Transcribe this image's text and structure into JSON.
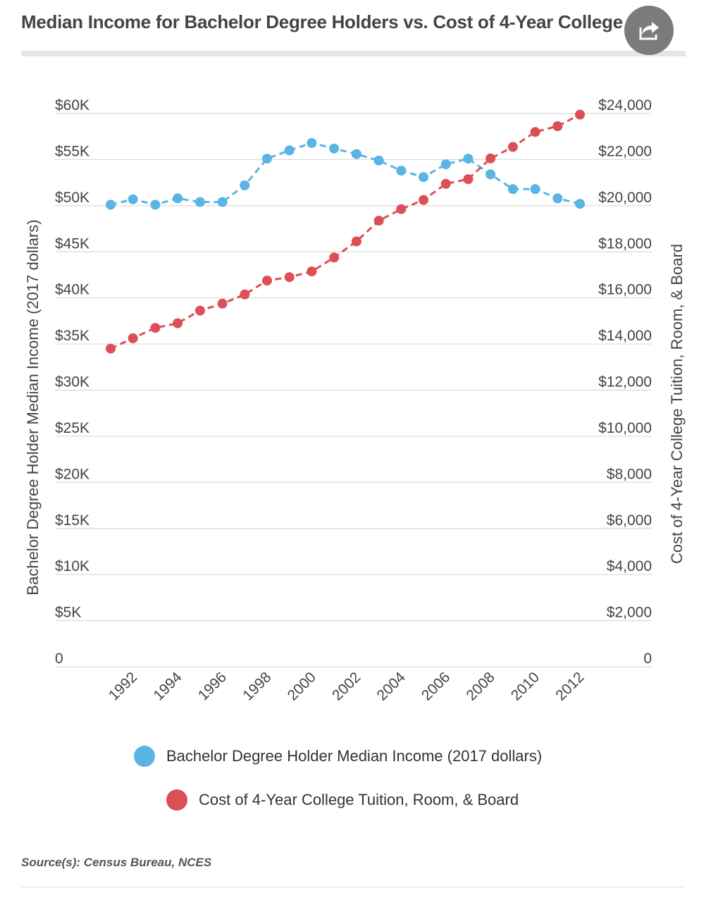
{
  "header": {
    "title": "Median Income for Bachelor Degree Holders vs. Cost of 4-Year College"
  },
  "share": {
    "icon": "share-icon"
  },
  "colors": {
    "income": "#5ab4e4",
    "cost": "#dd4f56",
    "grid": "#d9d9d9",
    "text": "#444444"
  },
  "chart_data": {
    "type": "line",
    "title": "Median Income for Bachelor Degree Holders vs. Cost of 4-Year College",
    "x": [
      1991,
      1992,
      1993,
      1994,
      1995,
      1996,
      1997,
      1998,
      1999,
      2000,
      2001,
      2002,
      2003,
      2004,
      2005,
      2006,
      2007,
      2008,
      2009,
      2010,
      2011,
      2012
    ],
    "x_ticks": [
      "1992",
      "1994",
      "1996",
      "1998",
      "2000",
      "2002",
      "2004",
      "2006",
      "2008",
      "2010",
      "2012"
    ],
    "xlim": [
      1991,
      2012
    ],
    "series": [
      {
        "name": "Bachelor Degree Holder Median Income (2017 dollars)",
        "axis": "left",
        "values": [
          50100,
          50700,
          50100,
          50800,
          50400,
          50400,
          52200,
          55100,
          56000,
          56800,
          56200,
          55600,
          54900,
          53800,
          53100,
          54500,
          55100,
          53400,
          51800,
          51800,
          50800,
          50200
        ]
      },
      {
        "name": "Cost of 4-Year College Tuition, Room, & Board",
        "axis": "right",
        "values": [
          13800,
          14250,
          14700,
          14900,
          15450,
          15750,
          16150,
          16750,
          16900,
          17150,
          17750,
          18450,
          19350,
          19850,
          20250,
          20950,
          21150,
          22050,
          22550,
          23200,
          23450,
          23950
        ]
      }
    ],
    "y_left": {
      "label": "Bachelor Degree Holder Median Income (2017 dollars)",
      "ylim": [
        0,
        60000
      ],
      "ticks": [
        0,
        5000,
        10000,
        15000,
        20000,
        25000,
        30000,
        35000,
        40000,
        45000,
        50000,
        55000,
        60000
      ],
      "tick_labels": [
        "0",
        "$5K",
        "$10K",
        "$15K",
        "$20K",
        "$25K",
        "$30K",
        "$35K",
        "$40K",
        "$45K",
        "$50K",
        "$55K",
        "$60K"
      ]
    },
    "y_right": {
      "label": "Cost of 4-Year College Tuition, Room, & Board",
      "ylim": [
        0,
        24000
      ],
      "ticks": [
        0,
        2000,
        4000,
        6000,
        8000,
        10000,
        12000,
        14000,
        16000,
        18000,
        20000,
        22000,
        24000
      ],
      "tick_labels": [
        "0",
        "$2,000",
        "$4,000",
        "$6,000",
        "$8,000",
        "$10,000",
        "$12,000",
        "$14,000",
        "$16,000",
        "$18,000",
        "$20,000",
        "$22,000",
        "$24,000"
      ]
    },
    "grid": true,
    "legend_position": "bottom"
  },
  "legend": {
    "income_label": "Bachelor Degree Holder Median Income (2017 dollars)",
    "cost_label": "Cost of 4-Year College Tuition, Room, & Board"
  },
  "footer": {
    "source": "Source(s): Census Bureau, NCES"
  }
}
